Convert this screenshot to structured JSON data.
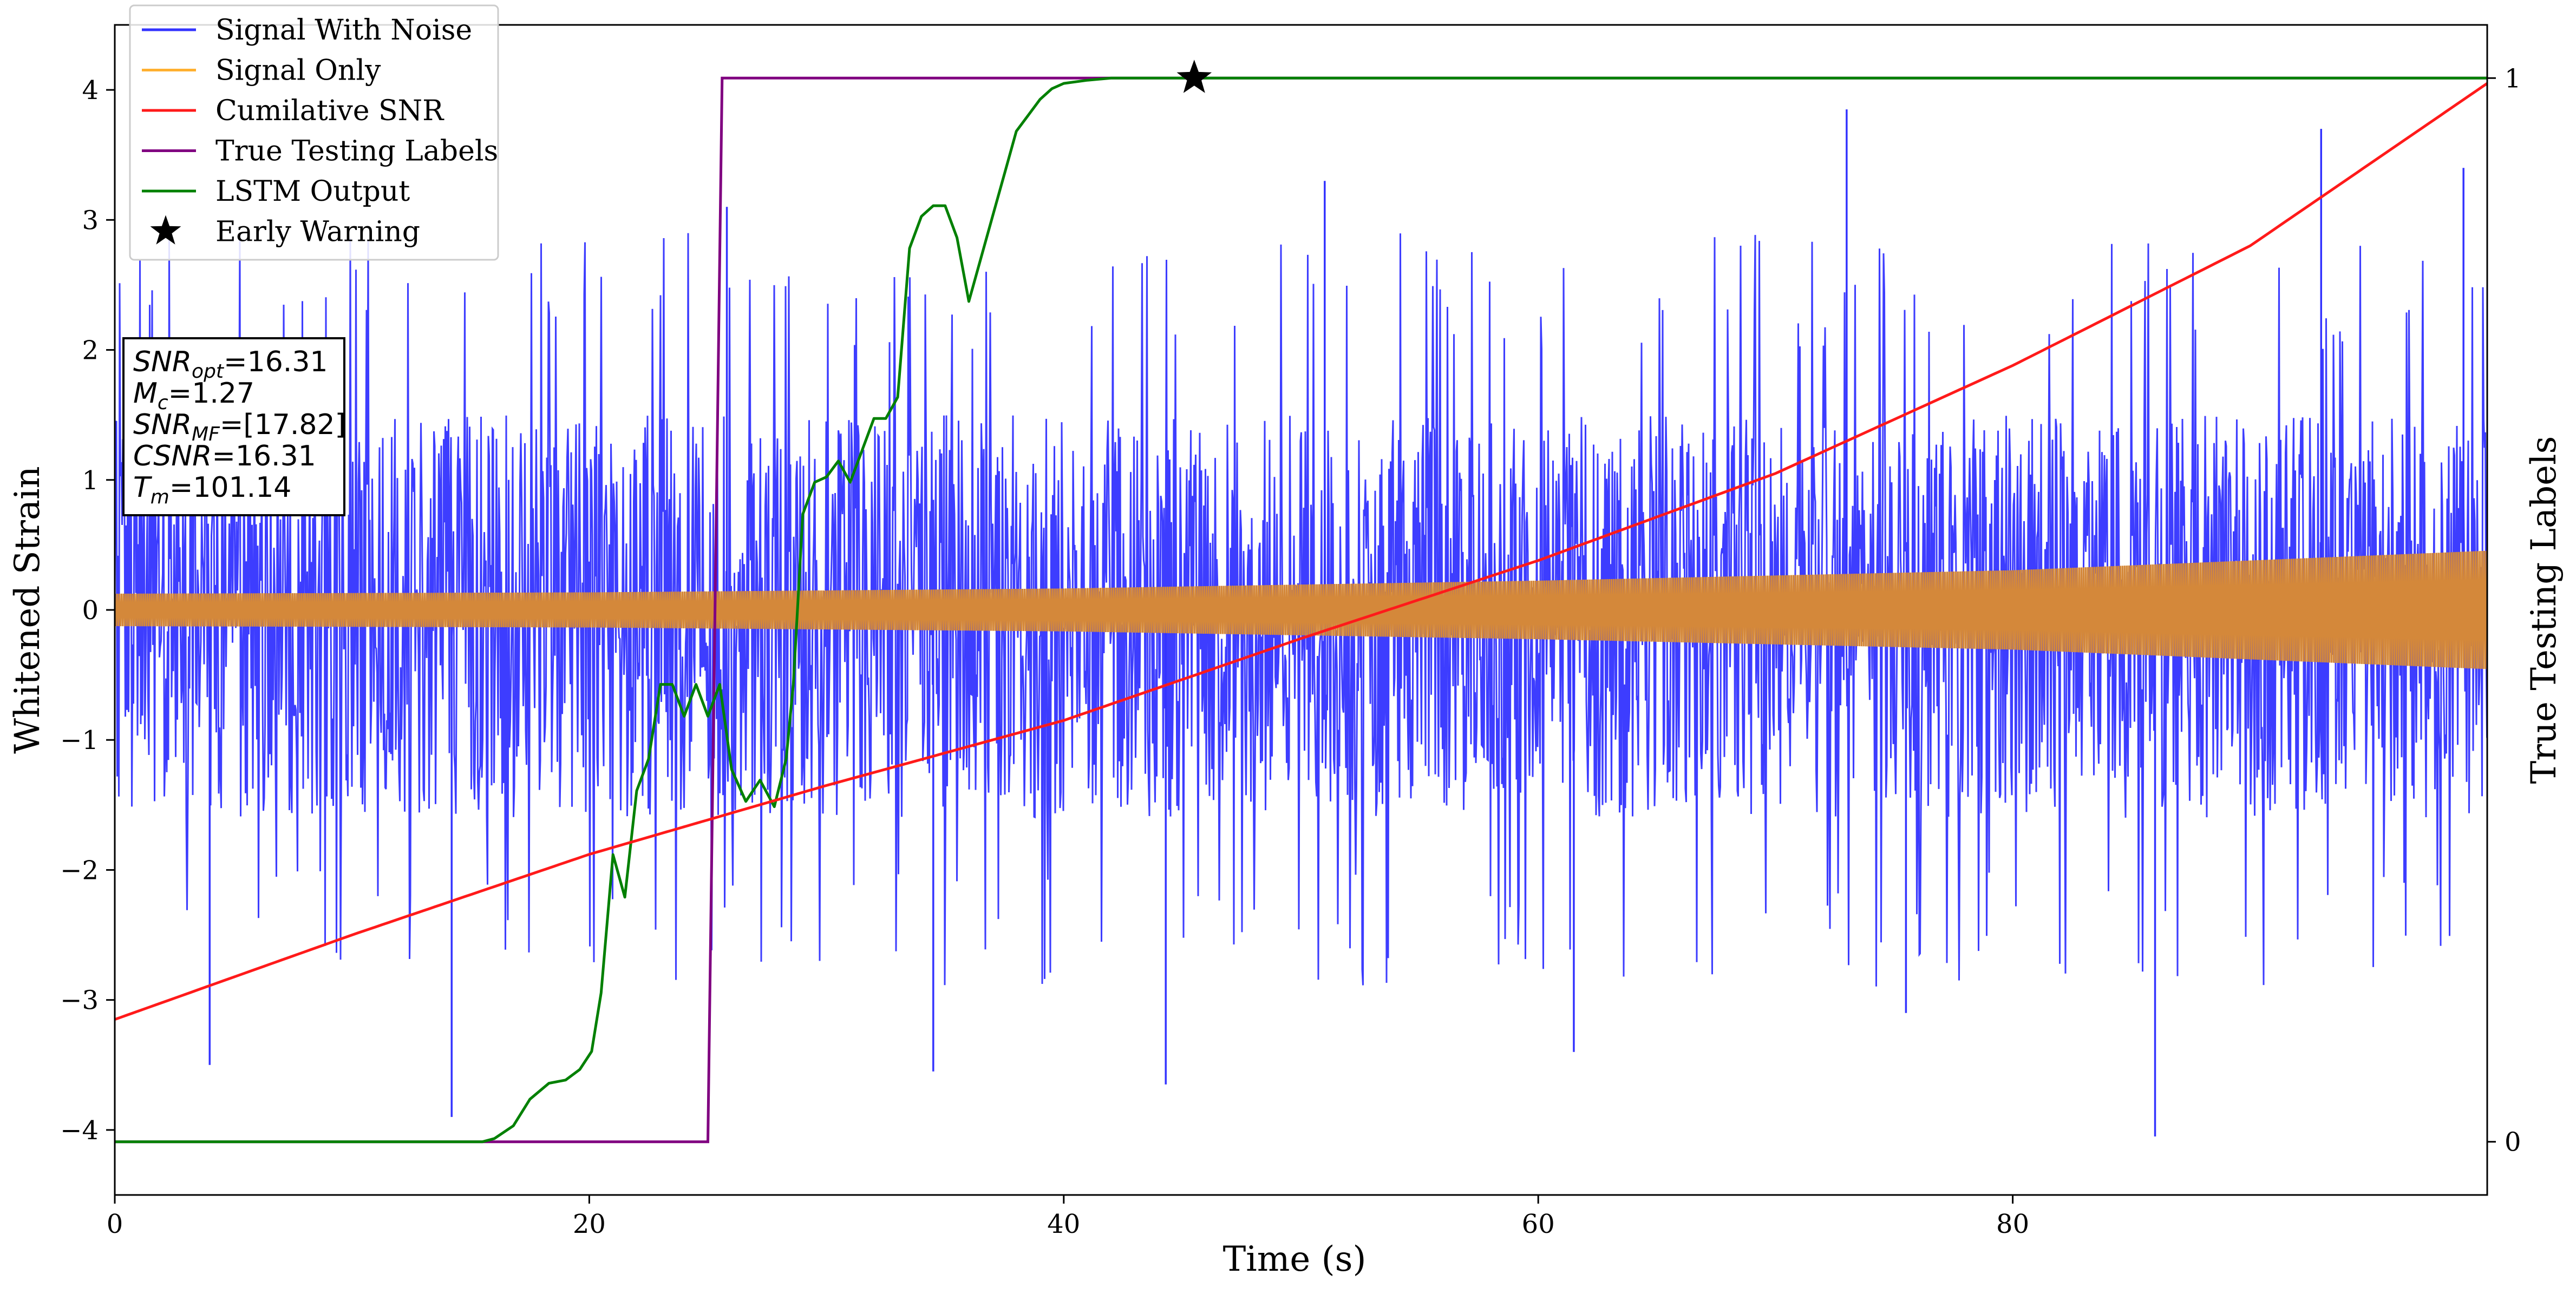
{
  "chart_data": {
    "type": "line",
    "xlabel": "Time (s)",
    "ylabel": "Whitened Strain",
    "y2label": "True Testing Labels",
    "xlim": [
      0,
      100
    ],
    "ylim": [
      -4.5,
      4.5
    ],
    "y2lim": [
      -0.05,
      1.05
    ],
    "xticks": [
      "0",
      "20",
      "40",
      "60",
      "80"
    ],
    "yticks": [
      "−4",
      "−3",
      "−2",
      "−1",
      "0",
      "1",
      "2",
      "3",
      "4"
    ],
    "y2ticks": [
      "0",
      "1"
    ],
    "grid": false,
    "legend_placement": "top-left",
    "legend": [
      {
        "label": "Signal With Noise",
        "color": "#3333ff",
        "marker": "line"
      },
      {
        "label": "Signal Only",
        "color": "#ffb030",
        "marker": "line"
      },
      {
        "label": "Cumilative SNR",
        "color": "#ff1a1a",
        "marker": "line"
      },
      {
        "label": "True Testing Labels",
        "color": "#800080",
        "marker": "line"
      },
      {
        "label": "LSTM Output",
        "color": "#008000",
        "marker": "line"
      },
      {
        "label": "Early Warning",
        "color": "#000000",
        "marker": "star"
      }
    ],
    "info_box": [
      {
        "base": "SNR",
        "sub": "opt",
        "value": "=16.31"
      },
      {
        "base": "M",
        "sub": "c",
        "value": "=1.27"
      },
      {
        "base": "SNR",
        "sub": "MF",
        "value": "=[17.82]"
      },
      {
        "base": "CSNR",
        "sub": "",
        "value": "=16.31"
      },
      {
        "base": "T",
        "sub": "m",
        "value": "=101.14"
      }
    ],
    "series": [
      {
        "name": "Signal With Noise",
        "color": "#3333ff",
        "typical_band": [
          -1.6,
          1.5
        ],
        "notable_peaks": [
          {
            "x": 4.0,
            "y": -3.5
          },
          {
            "x": 14.2,
            "y": -3.9
          },
          {
            "x": 25.8,
            "y": 3.1
          },
          {
            "x": 34.5,
            "y": -3.55
          },
          {
            "x": 44.3,
            "y": -3.65
          },
          {
            "x": 51.0,
            "y": 3.3
          },
          {
            "x": 61.5,
            "y": -3.4
          },
          {
            "x": 73.0,
            "y": 3.85
          },
          {
            "x": 75.5,
            "y": -3.1
          },
          {
            "x": 86.0,
            "y": -4.05
          },
          {
            "x": 93.0,
            "y": 3.7
          },
          {
            "x": 99.0,
            "y": 3.4
          }
        ]
      },
      {
        "name": "Signal Only",
        "color": "#d4883a",
        "envelope_x": [
          0,
          20,
          40,
          60,
          80,
          100
        ],
        "envelope_amplitude": [
          0.12,
          0.13,
          0.16,
          0.22,
          0.3,
          0.45
        ]
      },
      {
        "name": "Cumilative SNR",
        "color": "#ff1a1a",
        "x": [
          0,
          10,
          20,
          30,
          40,
          50,
          60,
          70,
          80,
          90,
          100
        ],
        "y": [
          -3.15,
          -2.5,
          -1.88,
          -1.35,
          -0.85,
          -0.22,
          0.38,
          1.05,
          1.88,
          2.8,
          4.05
        ]
      },
      {
        "name": "True Testing Labels",
        "color": "#800080",
        "axis": "right",
        "x": [
          0,
          25.0,
          25.6,
          100
        ],
        "y": [
          0,
          0,
          1,
          1
        ]
      },
      {
        "name": "LSTM Output",
        "color": "#008000",
        "axis": "right",
        "x": [
          0,
          15.5,
          16.0,
          16.8,
          17.5,
          18.3,
          19.0,
          19.6,
          20.1,
          20.5,
          21.0,
          21.5,
          22.0,
          22.5,
          23.0,
          23.5,
          24.0,
          24.5,
          25.0,
          25.5,
          26.0,
          26.6,
          27.2,
          27.8,
          28.3,
          28.6,
          29.0,
          29.5,
          30.0,
          30.5,
          31.0,
          31.5,
          32.0,
          32.5,
          33.0,
          33.5,
          34.0,
          34.5,
          35.0,
          35.5,
          36.0,
          36.5,
          37.0,
          37.5,
          38.0,
          38.5,
          39.0,
          39.5,
          40.0,
          41.0,
          42.0,
          43.0,
          44.0,
          46.0,
          50.0,
          60.0,
          100.0
        ],
        "y": [
          0,
          0,
          0.003,
          0.015,
          0.04,
          0.055,
          0.058,
          0.068,
          0.085,
          0.14,
          0.27,
          0.23,
          0.33,
          0.36,
          0.43,
          0.43,
          0.4,
          0.43,
          0.4,
          0.43,
          0.35,
          0.32,
          0.34,
          0.315,
          0.36,
          0.43,
          0.59,
          0.62,
          0.625,
          0.64,
          0.62,
          0.65,
          0.68,
          0.68,
          0.7,
          0.84,
          0.87,
          0.88,
          0.88,
          0.85,
          0.79,
          0.83,
          0.87,
          0.91,
          0.95,
          0.965,
          0.98,
          0.99,
          0.995,
          0.998,
          1.0,
          1.0,
          1.0,
          1.0,
          1.0,
          1.0,
          1.0
        ]
      }
    ],
    "annotations": [
      {
        "type": "star",
        "name": "Early Warning",
        "x": 45.5,
        "y2": 1.0,
        "color": "#000000"
      }
    ]
  }
}
